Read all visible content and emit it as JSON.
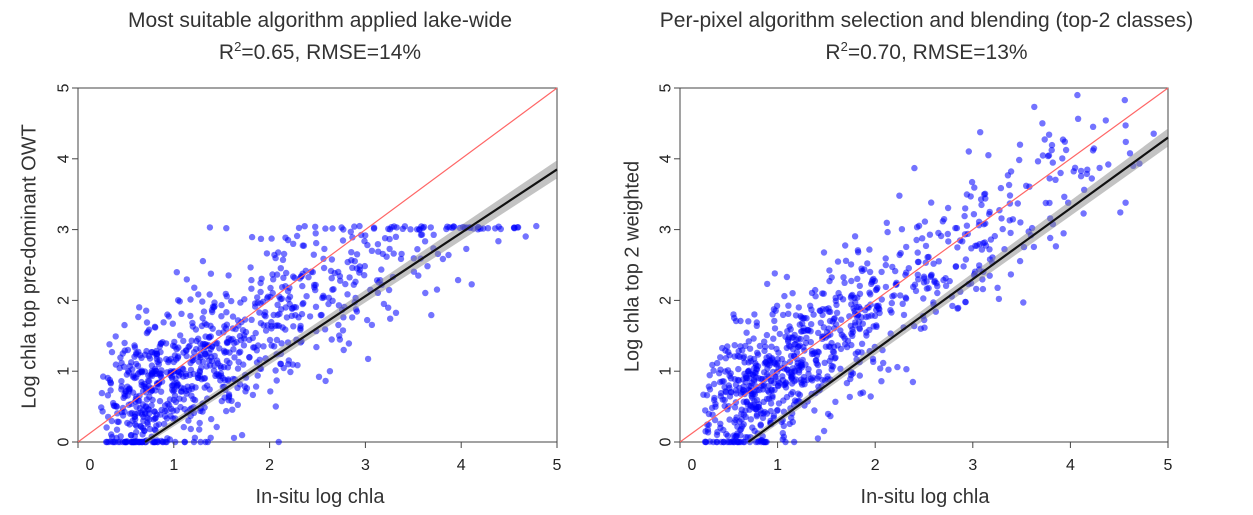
{
  "chart_data": [
    {
      "type": "scatter",
      "title": "Most suitable algorithm applied lake-wide",
      "subtitle": {
        "r2_prefix": "R",
        "r2_sup": "2",
        "stats": "=0.65, RMSE=14%"
      },
      "xlabel": "In-situ log chla",
      "ylabel": "Log chla top pre-dominant OWT",
      "xlim": [
        0,
        5
      ],
      "ylim": [
        0,
        5
      ],
      "xticks": [
        "0",
        "1",
        "2",
        "3",
        "4",
        "5"
      ],
      "yticks": [
        "0",
        "1",
        "2",
        "3",
        "4",
        "5"
      ],
      "grid": false,
      "point_color": "#0000ff",
      "one_to_one_line": {
        "color": "#ff6666",
        "x": [
          0,
          5
        ],
        "y": [
          0,
          5
        ]
      },
      "fit_line": {
        "color": "#111111",
        "x": [
          0.7,
          5
        ],
        "y": [
          0,
          3.85
        ]
      },
      "points": {
        "cap": 3.0,
        "spread": 0.55,
        "count": 900
      }
    },
    {
      "type": "scatter",
      "title": "Per-pixel algorithm selection and blending (top-2 classes)",
      "subtitle": {
        "r2_prefix": "R",
        "r2_sup": "2",
        "stats": "=0.70, RMSE=13%"
      },
      "xlabel": "In-situ log chla",
      "ylabel": "Log chla top 2 weighted",
      "xlim": [
        0,
        5
      ],
      "ylim": [
        0,
        5
      ],
      "xticks": [
        "0",
        "1",
        "2",
        "3",
        "4",
        "5"
      ],
      "yticks": [
        "0",
        "1",
        "2",
        "3",
        "4",
        "5"
      ],
      "grid": false,
      "point_color": "#0000ff",
      "one_to_one_line": {
        "color": "#ff6666",
        "x": [
          0,
          5
        ],
        "y": [
          0,
          5
        ]
      },
      "fit_line": {
        "color": "#111111",
        "x": [
          0.7,
          5
        ],
        "y": [
          0,
          4.3
        ]
      },
      "points": {
        "cap": 4.9,
        "spread": 0.5,
        "count": 900
      }
    }
  ]
}
